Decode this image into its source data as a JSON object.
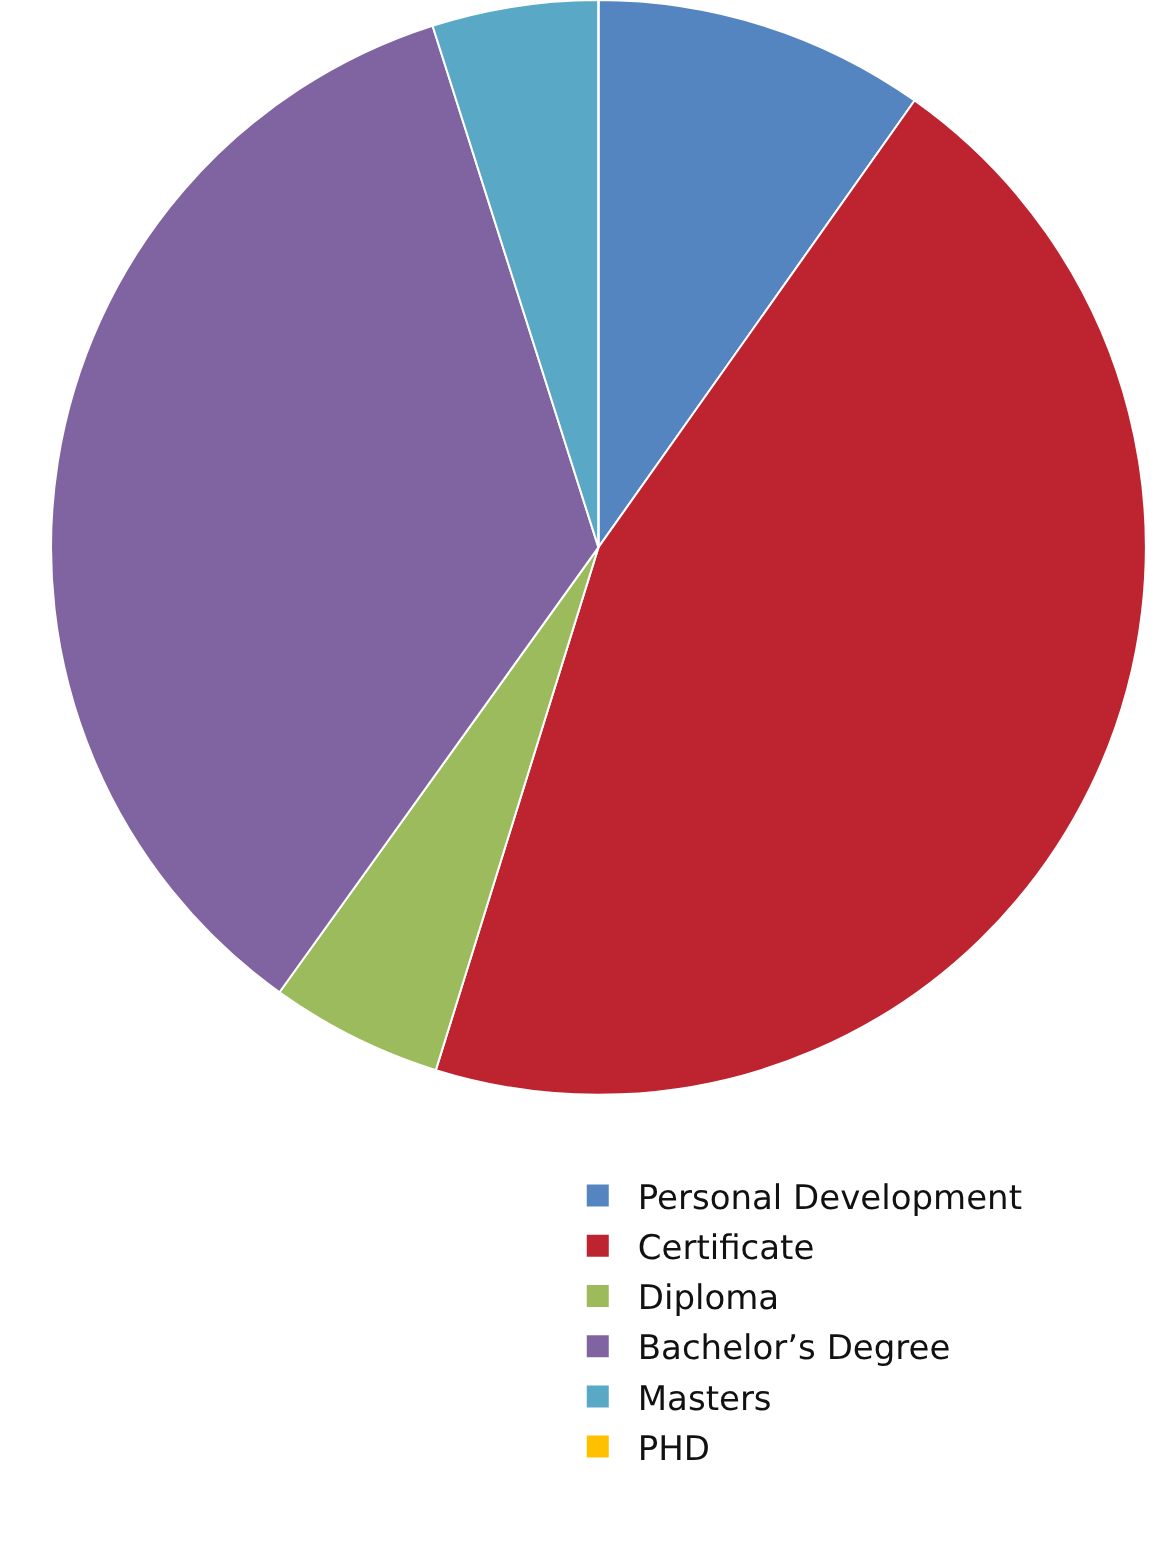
{
  "chart_data": {
    "type": "pie",
    "categories": [
      "Personal Development",
      "Certificate",
      "Diploma",
      "Bachelor’s Degree",
      "Masters",
      "PHD"
    ],
    "values": [
      9.8,
      45,
      5.1,
      35.2,
      4.9,
      0
    ],
    "colors": [
      "#5585c0",
      "#be2330",
      "#9bbb5d",
      "#8064a2",
      "#59a9c6",
      "#ffc000"
    ],
    "legend": "bottom right"
  }
}
